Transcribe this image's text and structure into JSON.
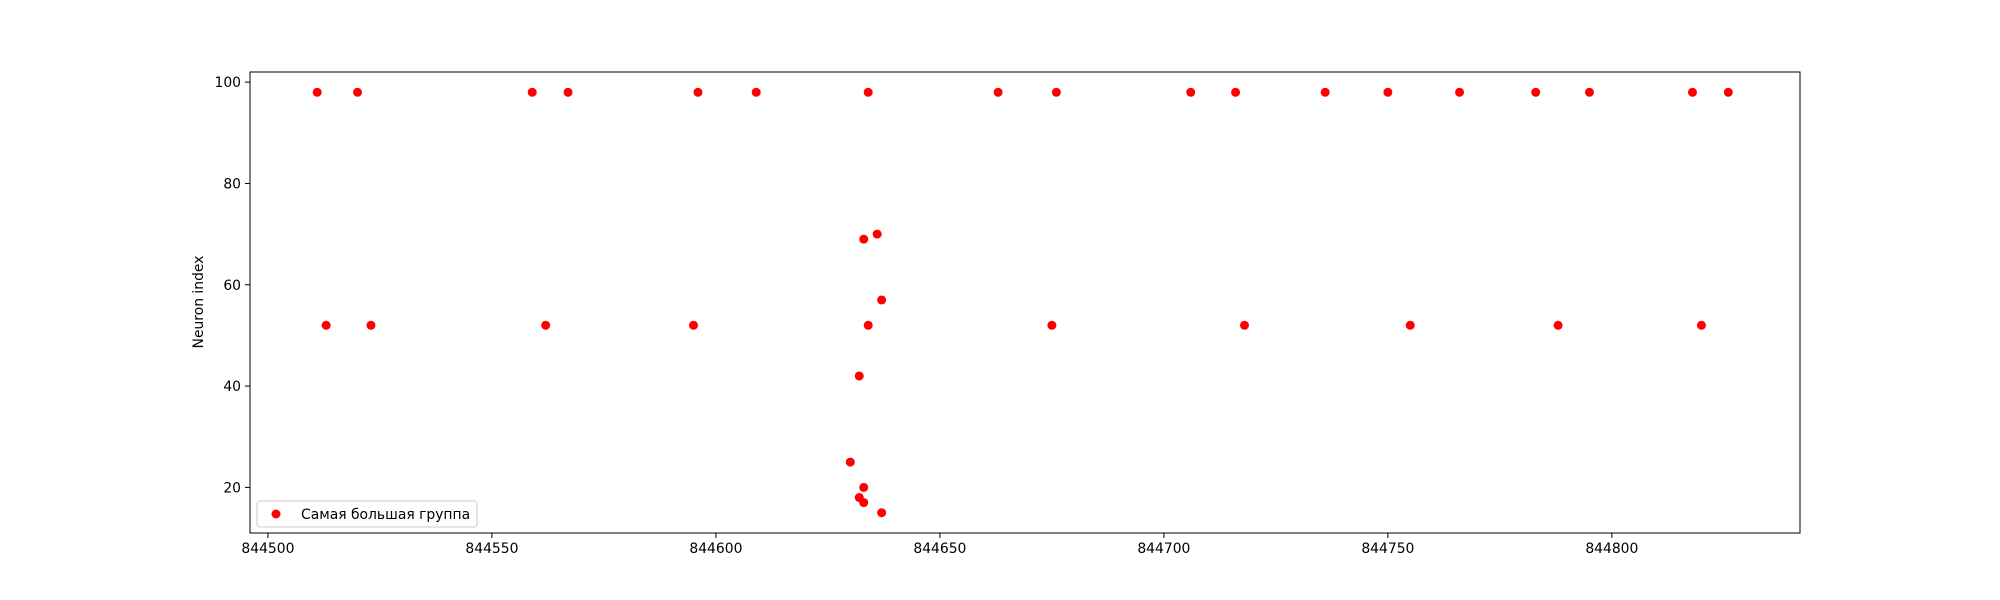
{
  "chart_data": {
    "type": "scatter",
    "title": "",
    "xlabel": "",
    "ylabel": "Neuron index",
    "xlim": [
      844496,
      844842
    ],
    "ylim": [
      11,
      102
    ],
    "xticks": [
      844500,
      844550,
      844600,
      844650,
      844700,
      844750,
      844800
    ],
    "yticks": [
      20,
      40,
      60,
      80,
      100
    ],
    "grid": false,
    "legend_position": "lower-left",
    "series": [
      {
        "name": "Самая большая группа",
        "color": "#ff0000",
        "points": [
          [
            844511,
            98
          ],
          [
            844520,
            98
          ],
          [
            844559,
            98
          ],
          [
            844567,
            98
          ],
          [
            844596,
            98
          ],
          [
            844609,
            98
          ],
          [
            844634,
            98
          ],
          [
            844663,
            98
          ],
          [
            844676,
            98
          ],
          [
            844706,
            98
          ],
          [
            844716,
            98
          ],
          [
            844736,
            98
          ],
          [
            844750,
            98
          ],
          [
            844766,
            98
          ],
          [
            844783,
            98
          ],
          [
            844795,
            98
          ],
          [
            844818,
            98
          ],
          [
            844826,
            98
          ],
          [
            844513,
            52
          ],
          [
            844523,
            52
          ],
          [
            844562,
            52
          ],
          [
            844595,
            52
          ],
          [
            844634,
            52
          ],
          [
            844675,
            52
          ],
          [
            844718,
            52
          ],
          [
            844755,
            52
          ],
          [
            844788,
            52
          ],
          [
            844820,
            52
          ],
          [
            844636,
            70
          ],
          [
            844633,
            69
          ],
          [
            844637,
            57
          ],
          [
            844632,
            42
          ],
          [
            844630,
            25
          ],
          [
            844633,
            20
          ],
          [
            844632,
            18
          ],
          [
            844633,
            17
          ],
          [
            844637,
            15
          ]
        ]
      }
    ]
  }
}
